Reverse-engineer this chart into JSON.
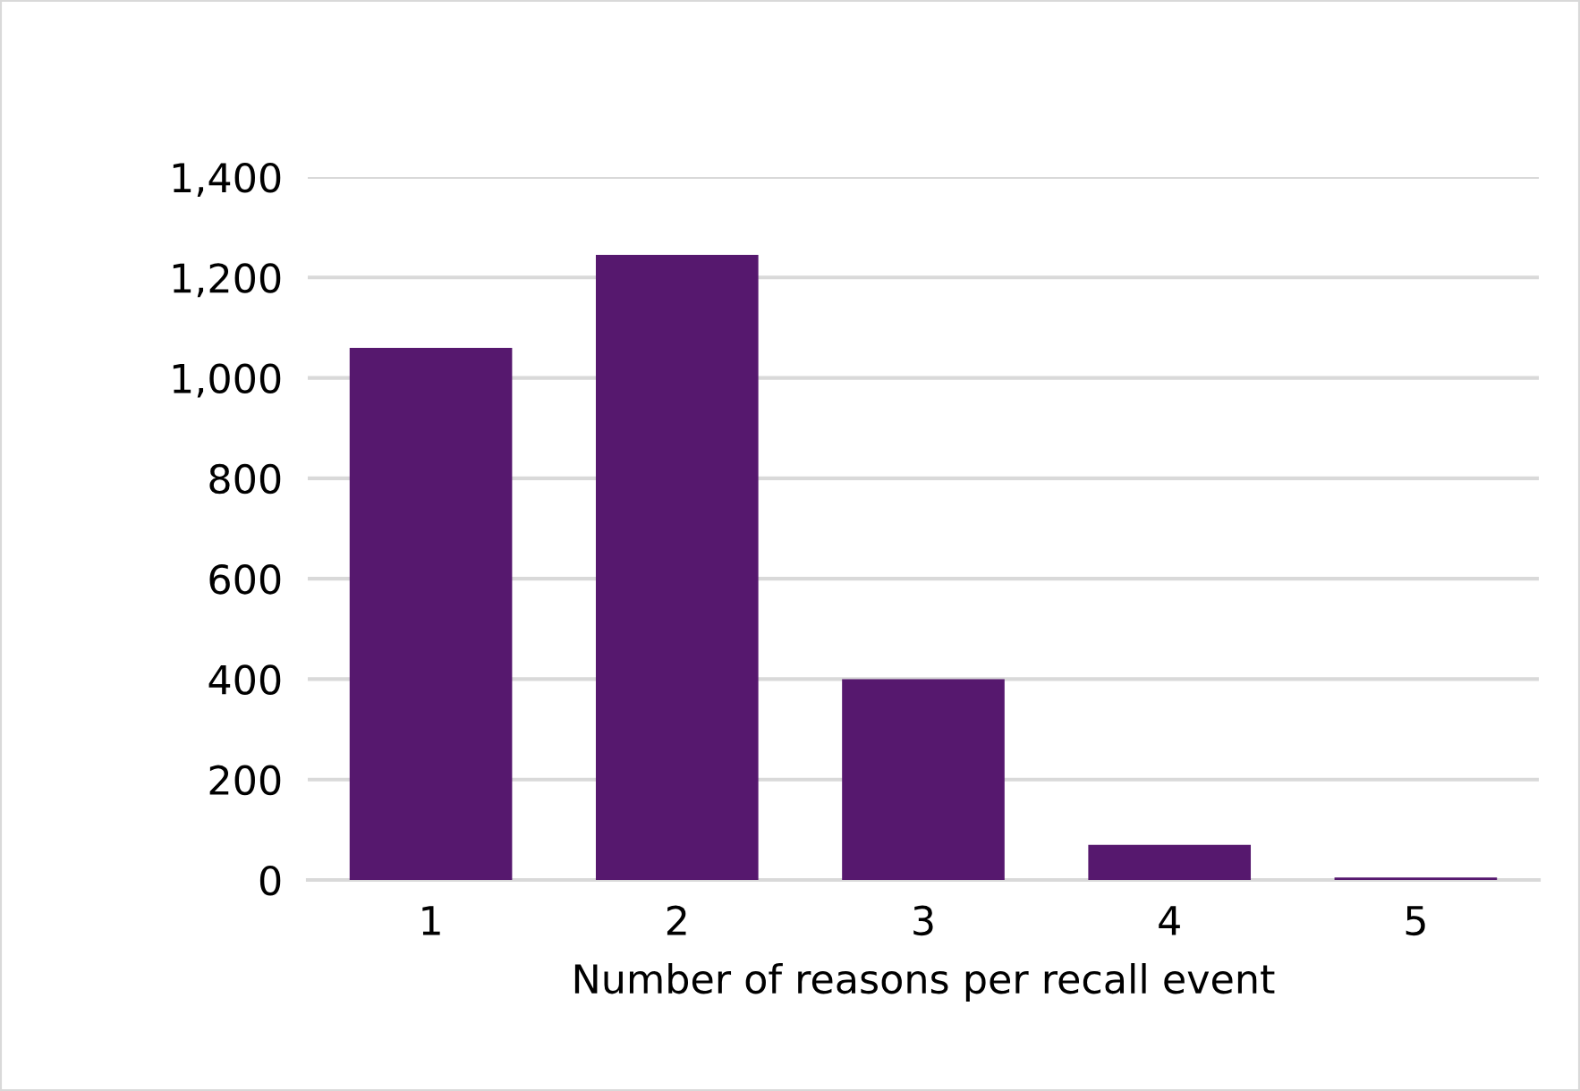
{
  "chart_data": {
    "type": "bar",
    "xlabel": "Number of reasons per recall event",
    "categories": [
      "1",
      "2",
      "3",
      "4",
      "5"
    ],
    "values": [
      1060,
      1245,
      400,
      70,
      5
    ],
    "color": "#56186e",
    "ylim": [
      0,
      1400
    ],
    "yticks": [
      {
        "value": 0,
        "label": "0"
      },
      {
        "value": 200,
        "label": "200"
      },
      {
        "value": 400,
        "label": "400"
      },
      {
        "value": 600,
        "label": "600"
      },
      {
        "value": 800,
        "label": "800"
      },
      {
        "value": 1000,
        "label": "1,000"
      },
      {
        "value": 1200,
        "label": "1,200"
      },
      {
        "value": 1400,
        "label": "1,400"
      }
    ],
    "grid": "y"
  }
}
